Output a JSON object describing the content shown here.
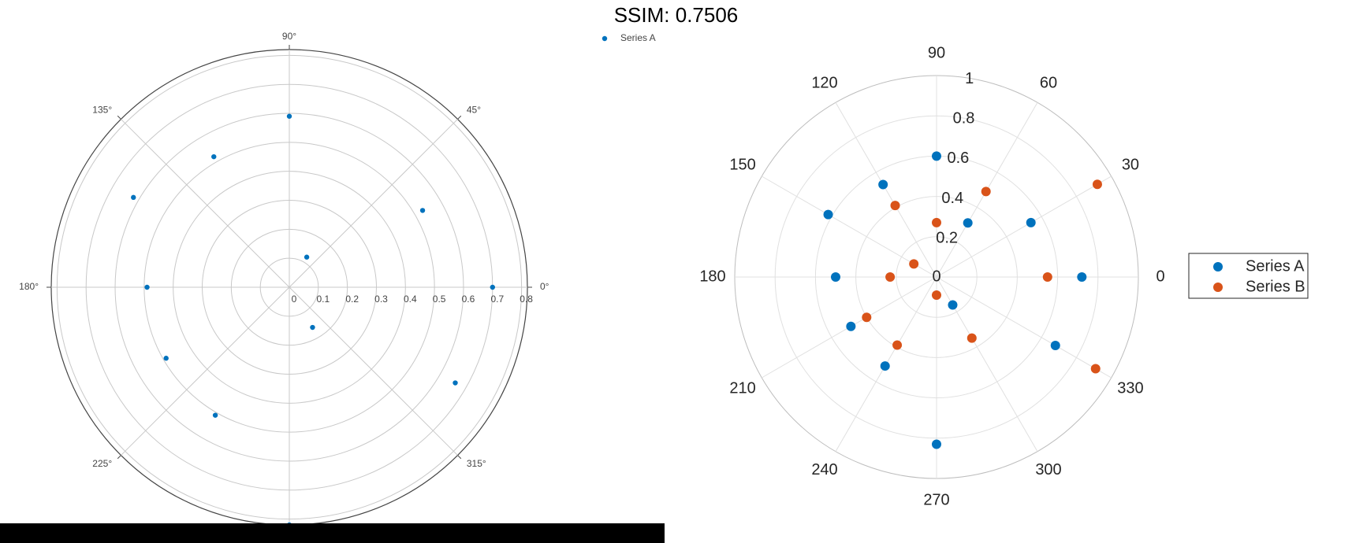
{
  "title": "SSIM: 0.7506",
  "colors": {
    "series_a": "#0072BD",
    "series_b": "#D95319",
    "grid": "#cccccc",
    "axis": "#444444"
  },
  "chart_data": [
    {
      "type": "scatter",
      "coordinate_system": "polar",
      "angular_unit": "degrees",
      "angular_ticks": [
        "0°",
        "45°",
        "90°",
        "135°",
        "180°",
        "225°",
        "315°"
      ],
      "radial_ticks": [
        "0",
        "0.1",
        "0.2",
        "0.3",
        "0.4",
        "0.5",
        "0.6",
        "0.7",
        "0.8"
      ],
      "rlim": [
        0,
        0.82
      ],
      "grid": true,
      "legend_placement": "top-right",
      "series": [
        {
          "name": "Series A",
          "points": [
            {
              "theta": 0,
              "r": 0.7
            },
            {
              "theta": 30,
              "r": 0.53
            },
            {
              "theta": 60,
              "r": 0.12
            },
            {
              "theta": 90,
              "r": 0.59
            },
            {
              "theta": 120,
              "r": 0.52
            },
            {
              "theta": 150,
              "r": 0.62
            },
            {
              "theta": 180,
              "r": 0.49
            },
            {
              "theta": 210,
              "r": 0.49
            },
            {
              "theta": 240,
              "r": 0.51
            },
            {
              "theta": 270,
              "r": 0.82
            },
            {
              "theta": 300,
              "r": 0.16
            },
            {
              "theta": 330,
              "r": 0.66
            }
          ]
        }
      ]
    },
    {
      "type": "scatter",
      "coordinate_system": "polar",
      "angular_unit": "degrees",
      "angular_ticks": [
        "0",
        "30",
        "60",
        "90",
        "120",
        "150",
        "180",
        "210",
        "240",
        "270",
        "300",
        "330"
      ],
      "radial_ticks": [
        "0",
        "0.2",
        "0.4",
        "0.6",
        "0.8",
        "1"
      ],
      "rlim": [
        0,
        1
      ],
      "grid": true,
      "legend_placement": "outside-right",
      "series": [
        {
          "name": "Series A",
          "points": [
            {
              "theta": 0,
              "r": 0.72
            },
            {
              "theta": 30,
              "r": 0.54
            },
            {
              "theta": 60,
              "r": 0.31
            },
            {
              "theta": 90,
              "r": 0.6
            },
            {
              "theta": 120,
              "r": 0.53
            },
            {
              "theta": 150,
              "r": 0.62
            },
            {
              "theta": 180,
              "r": 0.5
            },
            {
              "theta": 210,
              "r": 0.49
            },
            {
              "theta": 240,
              "r": 0.51
            },
            {
              "theta": 270,
              "r": 0.83
            },
            {
              "theta": 300,
              "r": 0.16
            },
            {
              "theta": 330,
              "r": 0.68
            }
          ]
        },
        {
          "name": "Series B",
          "points": [
            {
              "theta": 0,
              "r": 0.55
            },
            {
              "theta": 30,
              "r": 0.92
            },
            {
              "theta": 60,
              "r": 0.49
            },
            {
              "theta": 90,
              "r": 0.27
            },
            {
              "theta": 120,
              "r": 0.41
            },
            {
              "theta": 150,
              "r": 0.13
            },
            {
              "theta": 180,
              "r": 0.23
            },
            {
              "theta": 210,
              "r": 0.4
            },
            {
              "theta": 240,
              "r": 0.39
            },
            {
              "theta": 270,
              "r": 0.09
            },
            {
              "theta": 300,
              "r": 0.35
            },
            {
              "theta": 330,
              "r": 0.91
            }
          ]
        }
      ]
    }
  ]
}
